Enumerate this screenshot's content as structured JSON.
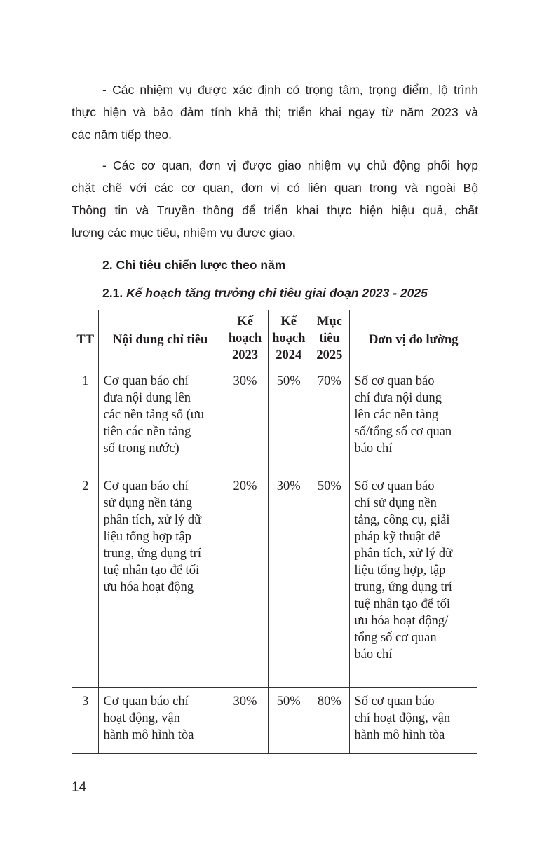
{
  "paragraphs": [
    {
      "lines": [
        "- Các nhiệm vụ được xác định có trọng tâm, trọng điểm, lộ trình",
        "thực hiện và bảo đảm tính khả thi; triển khai ngay từ năm 2023 và",
        "các năm tiếp theo."
      ]
    },
    {
      "lines": [
        "- Các cơ quan, đơn vị được giao nhiệm vụ chủ động phối hợp",
        "chặt chẽ với các cơ quan, đơn vị có liên quan trong và ngoài Bộ",
        "Thông tin và Truyền thông để triển khai thực hiện hiệu quả, chất",
        "lượng các mục tiêu, nhiệm vụ được giao."
      ]
    }
  ],
  "heading": "2. Chỉ tiêu chiến lược theo năm",
  "subheading": {
    "num": "2.1. ",
    "text": "Kế hoạch tăng trưởng chỉ tiêu giai đoạn 2023 - 2025"
  },
  "table": {
    "headers": [
      "TT",
      "Nội dung chỉ tiêu",
      "Kế hoạch 2023",
      "Kế hoạch 2024",
      "Mục tiêu 2025",
      "Đơn vị đo lường"
    ],
    "rows": [
      {
        "tt": "1",
        "content": [
          "Cơ quan báo chí",
          "đưa nội dung lên",
          "các nền tảng số (ưu",
          "tiên các nền tảng",
          "số trong nước)"
        ],
        "y2023": "30%",
        "y2024": "50%",
        "y2025": "70%",
        "unit": [
          "Số cơ quan báo",
          "chí đưa nội dung",
          "lên các nền tảng",
          "số/tổng số cơ quan",
          "báo chí"
        ]
      },
      {
        "tt": "2",
        "content": [
          "Cơ quan báo chí",
          "sử dụng nền tảng",
          "phân tích, xử lý dữ",
          "liệu tổng hợp tập",
          "trung, ứng dụng trí",
          "tuệ nhân tạo để tối",
          "ưu hóa hoạt động"
        ],
        "y2023": "20%",
        "y2024": "30%",
        "y2025": "50%",
        "unit": [
          "Số cơ quan báo",
          "chí sử dụng nền",
          "tảng, công cụ, giải",
          "pháp kỹ thuật để",
          "phân tích, xử lý dữ",
          "liệu tổng hợp, tập",
          "trung, ứng dụng trí",
          "tuệ nhân tạo để tối",
          "ưu hóa hoạt động/",
          "tổng số cơ quan",
          "báo chí"
        ]
      },
      {
        "tt": "3",
        "content": [
          "Cơ quan báo chí",
          "hoạt động, vận",
          "hành mô hình tòa"
        ],
        "y2023": "30%",
        "y2024": "50%",
        "y2025": "80%",
        "unit": [
          "Số cơ quan báo",
          "chí hoạt động, vận",
          "hành mô hình tòa"
        ]
      }
    ]
  },
  "page_number": "14"
}
